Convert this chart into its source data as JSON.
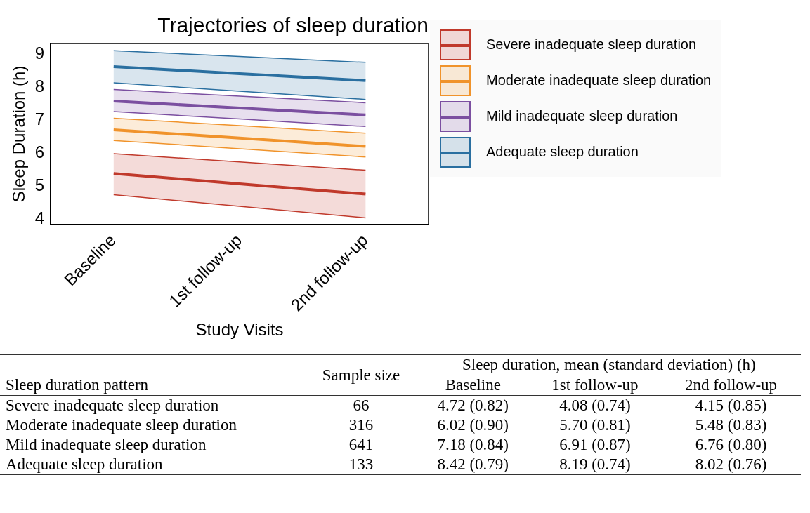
{
  "chart_data": [
    {
      "type": "line",
      "title": "Trajectories of sleep duration",
      "xlabel": "Study Visits",
      "ylabel": "Sleep Duration (h)",
      "categories": [
        "Baseline",
        "1st follow-up",
        "2nd follow-up"
      ],
      "series": [
        {
          "name": "Severe inadequate sleep duration",
          "color": "#c0392b",
          "values": [
            5.39,
            5.08,
            4.77
          ],
          "lower": [
            4.75,
            4.4,
            4.05
          ],
          "upper": [
            5.99,
            5.74,
            5.49
          ]
        },
        {
          "name": "Moderate inadequate sleep duration",
          "color": "#f0932b",
          "values": [
            6.71,
            6.46,
            6.21
          ],
          "lower": [
            6.39,
            6.14,
            5.89
          ],
          "upper": [
            7.06,
            6.84,
            6.61
          ]
        },
        {
          "name": "Mild inadequate sleep duration",
          "color": "#7b4fa0",
          "values": [
            7.58,
            7.37,
            7.16
          ],
          "lower": [
            7.26,
            7.04,
            6.81
          ],
          "upper": [
            7.93,
            7.73,
            7.53
          ]
        },
        {
          "name": "Adequate sleep duration",
          "color": "#2a6fa0",
          "values": [
            8.62,
            8.41,
            8.2
          ],
          "lower": [
            8.13,
            7.88,
            7.63
          ],
          "upper": [
            9.1,
            8.93,
            8.75
          ]
        },
        {
          "type": "line",
          "color": "#c0392b",
          "values": [
            4.75,
            4.4,
            4.05
          ]
        },
        {
          "type": "line",
          "color": "#c0392b",
          "values": [
            5.99,
            5.74,
            5.49
          ]
        },
        {
          "type": "line",
          "color": "#f0932b",
          "values": [
            6.39,
            6.14,
            5.89
          ]
        },
        {
          "type": "line",
          "color": "#f0932b",
          "values": [
            7.06,
            6.84,
            6.61
          ]
        },
        {
          "type": "line",
          "color": "#7b4fa0",
          "values": [
            7.26,
            7.04,
            6.81
          ]
        },
        {
          "type": "line",
          "color": "#7b4fa0",
          "values": [
            7.93,
            7.73,
            7.53
          ]
        },
        {
          "type": "line",
          "color": "#2a6fa0",
          "values": [
            8.13,
            7.88,
            7.63
          ]
        },
        {
          "type": "line",
          "color": "#2a6fa0",
          "values": [
            9.1,
            8.93,
            8.75
          ]
        }
      ],
      "ylim": [
        3.85,
        9.32
      ],
      "yticks": [
        4,
        5,
        6,
        7,
        8,
        9
      ],
      "grid": false,
      "legend": "right",
      "marker": "none",
      "line_style": "solid"
    },
    {
      "type": "other",
      "ylabel": "Sleep duration pattern",
      "title": "Sleep duration, mean (standard deviation) (h)",
      "categories": [
        "Sample size",
        "Baseline",
        "1st follow-up",
        "2nd follow-up"
      ],
      "y_categories": [
        "Severe inadequate sleep duration",
        "Moderate inadequate sleep duration",
        "Mild inadequate sleep duration",
        "Adequate sleep duration"
      ],
      "cell_labels": [
        [
          "66",
          "4.72 (0.82)",
          "4.08 (0.74)",
          "4.15 (0.85)"
        ],
        [
          "316",
          "6.02 (0.90)",
          "5.70 (0.81)",
          "5.48 (0.83)"
        ],
        [
          "641",
          "7.18 (0.84)",
          "6.91 (0.87)",
          "6.76 (0.80)"
        ],
        [
          "133",
          "8.42 (0.79)",
          "8.19 (0.74)",
          "8.02 (0.76)"
        ]
      ]
    }
  ]
}
